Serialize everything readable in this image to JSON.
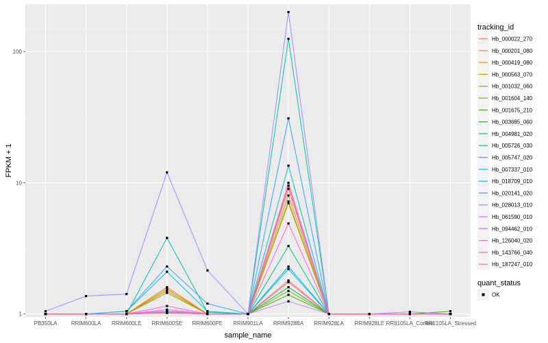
{
  "chart_data": {
    "type": "line",
    "xlabel": "sample_name",
    "ylabel": "FPKM + 1",
    "y_scale": "log",
    "ylim": [
      0.95,
      230
    ],
    "y_ticks": [
      1,
      10,
      100
    ],
    "grid": true,
    "legend_placement": "right",
    "categories": [
      "PB350LA",
      "RRIM600LA",
      "RRIM600LE",
      "RRIM600SE",
      "RRIM600PE",
      "RRIM901LA",
      "RRIM928BA",
      "RRIM928LA",
      "RRIM928LE",
      "RRII105LA_Control",
      "RRII105LA_Stressed"
    ],
    "color_legend": {
      "title": "tracking_id"
    },
    "shape_legend": {
      "title": "quant_status",
      "entries": [
        "OK"
      ]
    },
    "series": [
      {
        "name": "Hb_000022_270",
        "color": "#F8766D",
        "values": [
          1,
          1,
          1,
          1.05,
          1,
          1,
          1.8,
          1,
          1,
          1,
          1
        ]
      },
      {
        "name": "Hb_000201_080",
        "color": "#EA8331",
        "values": [
          1,
          1,
          1,
          1.6,
          1,
          1,
          9.5,
          1,
          1,
          1,
          1
        ]
      },
      {
        "name": "Hb_000419_080",
        "color": "#D89000",
        "values": [
          1,
          1,
          1,
          1.55,
          1,
          1,
          7.2,
          1,
          1,
          1,
          1
        ]
      },
      {
        "name": "Hb_000563_070",
        "color": "#C09B00",
        "values": [
          1,
          1,
          1,
          1.5,
          1,
          1,
          8.0,
          1,
          1,
          1,
          1
        ]
      },
      {
        "name": "Hb_001032_060",
        "color": "#A3A500",
        "values": [
          1,
          1,
          1,
          1.45,
          1,
          1,
          7.0,
          1,
          1,
          1,
          1
        ]
      },
      {
        "name": "Hb_001604_140",
        "color": "#7CAE00",
        "values": [
          1,
          1,
          1,
          1.02,
          1,
          1,
          1.5,
          1,
          1,
          1,
          1
        ]
      },
      {
        "name": "Hb_001675_210",
        "color": "#39B600",
        "values": [
          1,
          1,
          1,
          1.02,
          1,
          1,
          1.4,
          1,
          1,
          1,
          1.05
        ]
      },
      {
        "name": "Hb_003685_060",
        "color": "#00BB4E",
        "values": [
          1,
          1,
          1,
          1.03,
          1,
          1,
          1.6,
          1,
          1,
          1,
          1
        ]
      },
      {
        "name": "Hb_004981_020",
        "color": "#00BF7D",
        "values": [
          1,
          1,
          1,
          1.05,
          1,
          1,
          3.3,
          1,
          1,
          1,
          1
        ]
      },
      {
        "name": "Hb_005726_030",
        "color": "#00C1A3",
        "values": [
          1,
          1,
          1,
          3.8,
          1.03,
          1,
          125,
          1,
          1,
          1,
          1
        ]
      },
      {
        "name": "Hb_005747_020",
        "color": "#00BFC4",
        "values": [
          1,
          1,
          1,
          1.05,
          1,
          1,
          13.5,
          1,
          1,
          1,
          1
        ]
      },
      {
        "name": "Hb_007337_010",
        "color": "#00BAE0",
        "values": [
          1,
          1,
          1.05,
          2.1,
          1.05,
          1,
          2.3,
          1,
          1,
          1,
          1
        ]
      },
      {
        "name": "Hb_018709_010",
        "color": "#00B0F6",
        "values": [
          1,
          1,
          1,
          1.05,
          1,
          1,
          2.2,
          1,
          1,
          1,
          1
        ]
      },
      {
        "name": "Hb_020141_020",
        "color": "#35A2FF",
        "values": [
          1,
          1,
          1.05,
          2.3,
          1.2,
          1,
          31,
          1,
          1,
          1,
          1
        ]
      },
      {
        "name": "Hb_028013_010",
        "color": "#9590FF",
        "values": [
          1.05,
          1.37,
          1.42,
          12,
          2.15,
          1,
          200,
          1,
          1,
          1,
          1
        ]
      },
      {
        "name": "Hb_061590_010",
        "color": "#C77CFF",
        "values": [
          1,
          1,
          1,
          1.03,
          1,
          1,
          1.25,
          1,
          1,
          1.04,
          1
        ]
      },
      {
        "name": "Hb_094462_010",
        "color": "#E76BF3",
        "values": [
          1,
          1,
          1,
          1.05,
          1,
          1,
          10,
          1,
          1,
          1,
          1
        ]
      },
      {
        "name": "Hb_126040_020",
        "color": "#FA62DB",
        "values": [
          1,
          1,
          1,
          1.15,
          1,
          1,
          4.9,
          1,
          1,
          1,
          1
        ]
      },
      {
        "name": "Hb_143766_040",
        "color": "#FF62BC",
        "values": [
          1,
          1,
          1,
          1.08,
          1,
          1,
          9.0,
          1,
          1,
          1,
          1
        ]
      },
      {
        "name": "Hb_187247_010",
        "color": "#FF6C91",
        "values": [
          1,
          1,
          1,
          1.02,
          1,
          1,
          1.75,
          1,
          1,
          1,
          1
        ]
      }
    ]
  }
}
